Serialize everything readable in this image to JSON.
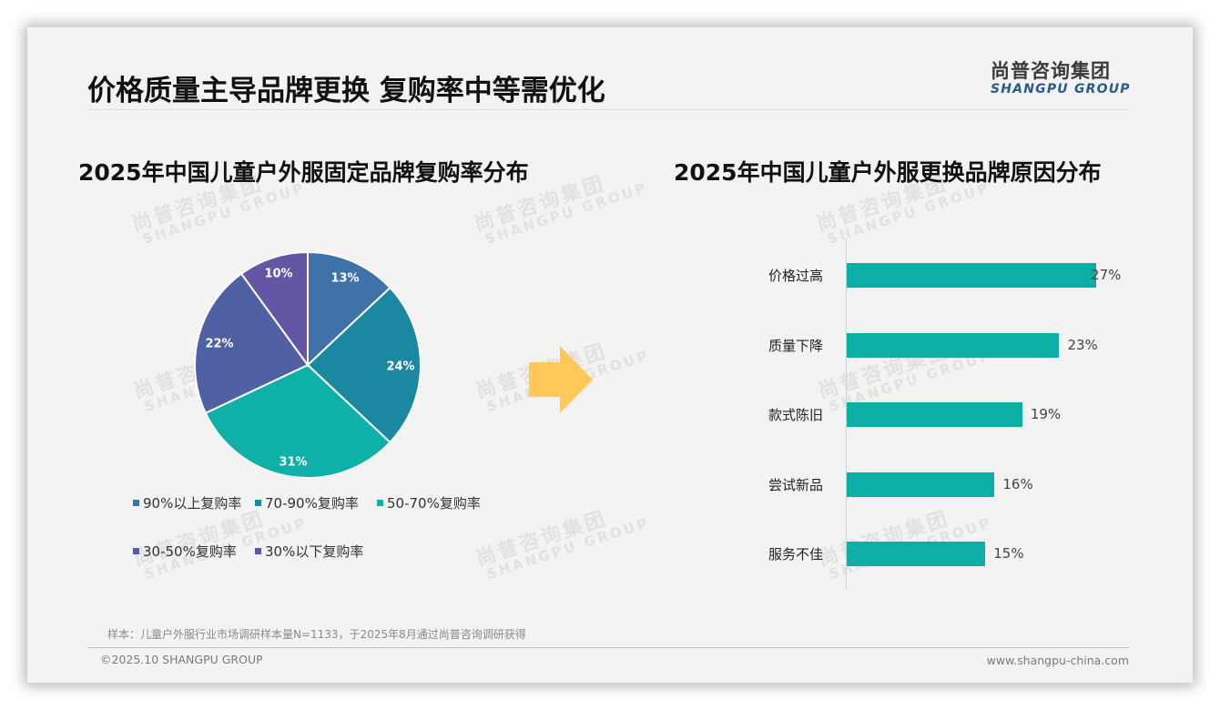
{
  "header": {
    "title": "价格质量主导品牌更换 复购率中等需优化",
    "logo_cn": "尚普咨询集团",
    "logo_en": "SHANGPU GROUP"
  },
  "watermark": {
    "cn": "尚普咨询集团",
    "en": "SHANGPU GROUP"
  },
  "colors": {
    "pie_90_plus": "#3f72a8",
    "pie_70_90": "#1a88a0",
    "pie_50_70": "#0fb0a8",
    "pie_30_50": "#5060a5",
    "pie_below_30": "#6556a5",
    "bar": "#0caea5",
    "arrow": "#ffc95a"
  },
  "footer": {
    "note": "样本：儿童户外服行业市场调研样本量N=1133，于2025年8月通过尚普咨询调研获得",
    "copyright": "©2025.10 SHANGPU GROUP",
    "website": "www.shangpu-china.com"
  },
  "chart_data": [
    {
      "type": "pie",
      "title": "2025年中国儿童户外服固定品牌复购率分布",
      "categories": [
        "90%以上复购率",
        "70-90%复购率",
        "50-70%复购率",
        "30-50%复购率",
        "30%以下复购率"
      ],
      "values": [
        13,
        24,
        31,
        22,
        10
      ],
      "labels": [
        "13%",
        "24%",
        "31%",
        "22%",
        "10%"
      ],
      "colors": [
        "#3f72a8",
        "#1a88a0",
        "#0fb0a8",
        "#5060a5",
        "#6556a5"
      ],
      "start_angle": "12 o'clock, clockwise",
      "legend_position": "bottom"
    },
    {
      "type": "bar",
      "orientation": "horizontal",
      "title": "2025年中国儿童户外服更换品牌原因分布",
      "categories": [
        "价格过高",
        "质量下降",
        "款式陈旧",
        "尝试新品",
        "服务不佳"
      ],
      "values": [
        27,
        23,
        19,
        16,
        15
      ],
      "labels": [
        "27%",
        "23%",
        "19%",
        "16%",
        "15%"
      ],
      "unit": "%",
      "xlabel": "",
      "ylabel": "",
      "xlim": [
        0,
        30
      ],
      "grid": false,
      "legend": false
    }
  ]
}
